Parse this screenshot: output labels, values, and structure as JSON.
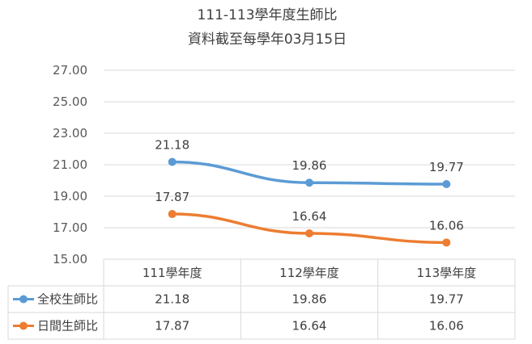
{
  "chart_data": {
    "type": "line",
    "title": "111-113學年度生師比",
    "subtitle": "資料截至每學年03月15日",
    "categories": [
      "111學年度",
      "112學年度",
      "113學年度"
    ],
    "ylim": [
      15,
      27
    ],
    "yticks": [
      "15.00",
      "17.00",
      "19.00",
      "21.00",
      "23.00",
      "25.00",
      "27.00"
    ],
    "grid": true,
    "legend": "data-table",
    "series": [
      {
        "name": "全校生師比",
        "values": [
          21.18,
          19.86,
          19.77
        ],
        "labels": [
          "21.18",
          "19.86",
          "19.77"
        ],
        "color": "#5B9BD5"
      },
      {
        "name": "日間生師比",
        "values": [
          17.87,
          16.64,
          16.06
        ],
        "labels": [
          "17.87",
          "16.64",
          "16.06"
        ],
        "color": "#ED7D31"
      }
    ]
  }
}
